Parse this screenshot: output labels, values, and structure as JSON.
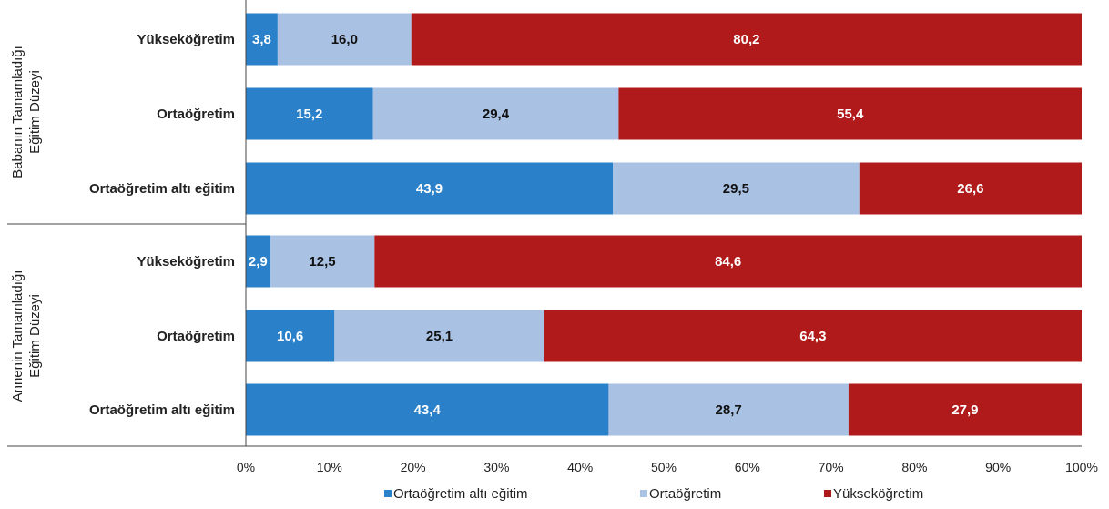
{
  "chart_data": {
    "type": "bar",
    "orientation": "horizontal",
    "stacked": true,
    "groups": [
      {
        "label_lines": [
          "Babanın Tamamladığı",
          "Eğitim Düzeyi"
        ],
        "rows": [
          {
            "label": "Yükseköğretim",
            "values": [
              3.8,
              16.0,
              80.2
            ],
            "labels": [
              "3,8",
              "16,0",
              "80,2"
            ]
          },
          {
            "label": "Ortaöğretim",
            "values": [
              15.2,
              29.4,
              55.4
            ],
            "labels": [
              "15,2",
              "29,4",
              "55,4"
            ]
          },
          {
            "label": "Ortaöğretim altı eğitim",
            "values": [
              43.9,
              29.5,
              26.6
            ],
            "labels": [
              "43,9",
              "29,5",
              "26,6"
            ]
          }
        ]
      },
      {
        "label_lines": [
          "Annenin Tamamladığı",
          "Eğitim Düzeyi"
        ],
        "rows": [
          {
            "label": "Yükseköğretim",
            "values": [
              2.9,
              12.5,
              84.6
            ],
            "labels": [
              "2,9",
              "12,5",
              "84,6"
            ]
          },
          {
            "label": "Ortaöğretim",
            "values": [
              10.6,
              25.1,
              64.3
            ],
            "labels": [
              "10,6",
              "25,1",
              "64,3"
            ]
          },
          {
            "label": "Ortaöğretim altı eğitim",
            "values": [
              43.4,
              28.7,
              27.9
            ],
            "labels": [
              "43,4",
              "28,7",
              "27,9"
            ]
          }
        ]
      }
    ],
    "series": [
      {
        "name": "Ortaöğretim altı eğitim",
        "color": "#2a80c9",
        "label_color": "#ffffff"
      },
      {
        "name": "Ortaöğretim",
        "color": "#a9c1e3",
        "label_color": "#111111"
      },
      {
        "name": "Yükseköğretim",
        "color": "#b01a1a",
        "label_color": "#ffffff"
      }
    ],
    "xlim": [
      0,
      100
    ],
    "xticks": [
      "0%",
      "10%",
      "20%",
      "30%",
      "40%",
      "50%",
      "60%",
      "70%",
      "80%",
      "90%",
      "100%"
    ],
    "legend_position": "bottom",
    "grid": false
  }
}
